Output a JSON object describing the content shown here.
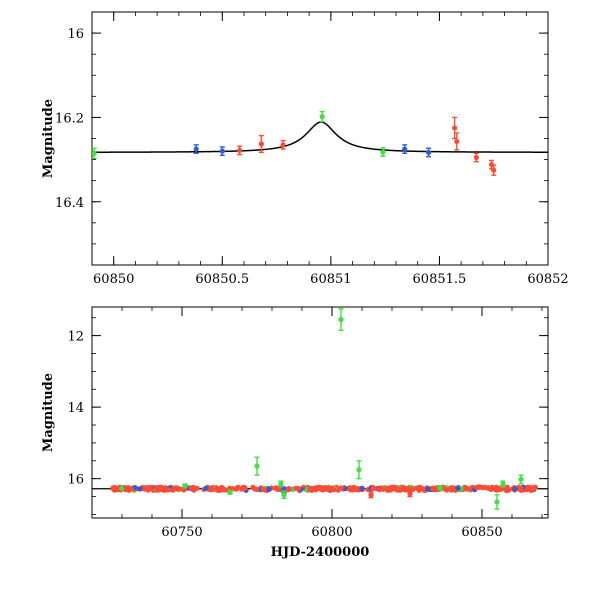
{
  "colors": {
    "red": "#ff4a36",
    "blue": "#2a5fd6",
    "green": "#40e040",
    "model": "#000000"
  },
  "chart_data": [
    {
      "type": "scatter",
      "title": "",
      "xlabel": "",
      "ylabel": "Magnitude",
      "xlim": [
        60849.9,
        60852.0
      ],
      "ylim": [
        16.55,
        15.95
      ],
      "y_inverted": true,
      "xticks": [
        60850,
        60850.5,
        60851,
        60851.5,
        60852
      ],
      "xtick_labels": [
        "60850",
        "60850.5",
        "60851",
        "60851.5",
        "60852"
      ],
      "yticks": [
        16.0,
        16.2,
        16.4
      ],
      "ytick_labels": [
        "16",
        "16.2",
        "16.4"
      ],
      "model_curve": {
        "baseline": 16.283,
        "peak_time": 60850.955,
        "amplitude": 0.072,
        "timescale": 0.085
      },
      "series": [
        {
          "color": "red",
          "points": [
            {
              "x": 60850.58,
              "y": 16.278,
              "err": 0.01
            },
            {
              "x": 60850.68,
              "y": 16.263,
              "err": 0.02
            },
            {
              "x": 60850.78,
              "y": 16.265,
              "err": 0.01
            },
            {
              "x": 60851.57,
              "y": 16.225,
              "err": 0.025
            },
            {
              "x": 60851.58,
              "y": 16.257,
              "err": 0.02
            },
            {
              "x": 60851.67,
              "y": 16.295,
              "err": 0.01
            },
            {
              "x": 60851.74,
              "y": 16.312,
              "err": 0.01
            },
            {
              "x": 60851.75,
              "y": 16.325,
              "err": 0.012
            }
          ]
        },
        {
          "color": "blue",
          "points": [
            {
              "x": 60850.38,
              "y": 16.275,
              "err": 0.01
            },
            {
              "x": 60850.5,
              "y": 16.28,
              "err": 0.01
            },
            {
              "x": 60851.34,
              "y": 16.275,
              "err": 0.01
            },
            {
              "x": 60851.45,
              "y": 16.283,
              "err": 0.01
            }
          ]
        },
        {
          "color": "green",
          "points": [
            {
              "x": 60849.91,
              "y": 16.285,
              "err": 0.012
            },
            {
              "x": 60850.96,
              "y": 16.198,
              "err": 0.012
            },
            {
              "x": 60851.24,
              "y": 16.282,
              "err": 0.01
            }
          ]
        }
      ]
    },
    {
      "type": "scatter",
      "title": "",
      "xlabel": "HJD-2400000",
      "ylabel": "Magnitude",
      "xlim": [
        60720,
        60872
      ],
      "ylim": [
        17.1,
        11.2
      ],
      "y_inverted": true,
      "xticks": [
        60750,
        60800,
        60850
      ],
      "xtick_labels": [
        "60750",
        "60800",
        "60850"
      ],
      "yticks": [
        12,
        14,
        16
      ],
      "ytick_labels": [
        "12",
        "14",
        "16"
      ],
      "baseline_magnitude": 16.283,
      "series": [
        {
          "color": "red",
          "points": [
            {
              "x": 60727,
              "y": 16.26,
              "err": 0.03
            },
            {
              "x": 60733,
              "y": 16.29,
              "err": 0.03
            },
            {
              "x": 60738,
              "y": 16.27,
              "err": 0.03
            },
            {
              "x": 60744,
              "y": 16.3,
              "err": 0.03
            },
            {
              "x": 60749,
              "y": 16.28,
              "err": 0.03
            },
            {
              "x": 60755,
              "y": 16.27,
              "err": 0.03
            },
            {
              "x": 60760,
              "y": 16.3,
              "err": 0.03
            },
            {
              "x": 60766,
              "y": 16.28,
              "err": 0.03
            },
            {
              "x": 60771,
              "y": 16.26,
              "err": 0.03
            },
            {
              "x": 60777,
              "y": 16.29,
              "err": 0.03
            },
            {
              "x": 60782,
              "y": 16.3,
              "err": 0.04
            },
            {
              "x": 60788,
              "y": 16.27,
              "err": 0.03
            },
            {
              "x": 60793,
              "y": 16.28,
              "err": 0.03
            },
            {
              "x": 60798,
              "y": 16.29,
              "err": 0.03
            },
            {
              "x": 60803,
              "y": 16.26,
              "err": 0.03
            },
            {
              "x": 60808,
              "y": 16.3,
              "err": 0.03
            },
            {
              "x": 60813,
              "y": 16.45,
              "err": 0.08
            },
            {
              "x": 60818,
              "y": 16.28,
              "err": 0.03
            },
            {
              "x": 60823,
              "y": 16.29,
              "err": 0.03
            },
            {
              "x": 60826,
              "y": 16.42,
              "err": 0.08
            },
            {
              "x": 60830,
              "y": 16.27,
              "err": 0.03
            },
            {
              "x": 60835,
              "y": 16.3,
              "err": 0.03
            },
            {
              "x": 60840,
              "y": 16.28,
              "err": 0.03
            },
            {
              "x": 60845,
              "y": 16.29,
              "err": 0.03
            },
            {
              "x": 60849,
              "y": 16.23,
              "err": 0.04
            },
            {
              "x": 60853,
              "y": 16.3,
              "err": 0.03
            },
            {
              "x": 60858,
              "y": 16.28,
              "err": 0.03
            },
            {
              "x": 60863,
              "y": 16.27,
              "err": 0.03
            },
            {
              "x": 60867,
              "y": 16.29,
              "err": 0.03
            }
          ]
        },
        {
          "color": "blue",
          "points": [
            {
              "x": 60736,
              "y": 16.29,
              "err": 0.03
            },
            {
              "x": 60758,
              "y": 16.27,
              "err": 0.03
            },
            {
              "x": 60779,
              "y": 16.3,
              "err": 0.03
            },
            {
              "x": 60784,
              "y": 16.42,
              "err": 0.05
            },
            {
              "x": 60810,
              "y": 16.28,
              "err": 0.03
            },
            {
              "x": 60832,
              "y": 16.29,
              "err": 0.03
            },
            {
              "x": 60842,
              "y": 16.27,
              "err": 0.03
            },
            {
              "x": 60861,
              "y": 16.29,
              "err": 0.03
            }
          ]
        },
        {
          "color": "green",
          "points": [
            {
              "x": 60751,
              "y": 16.2,
              "err": 0.05
            },
            {
              "x": 60766,
              "y": 16.38,
              "err": 0.05
            },
            {
              "x": 60775,
              "y": 15.65,
              "err": 0.25
            },
            {
              "x": 60783,
              "y": 16.15,
              "err": 0.08
            },
            {
              "x": 60784,
              "y": 16.45,
              "err": 0.1
            },
            {
              "x": 60803,
              "y": 11.55,
              "err": 0.3
            },
            {
              "x": 60809,
              "y": 15.75,
              "err": 0.25
            },
            {
              "x": 60836,
              "y": 16.25,
              "err": 0.05
            },
            {
              "x": 60855,
              "y": 16.65,
              "err": 0.2
            },
            {
              "x": 60857,
              "y": 16.15,
              "err": 0.08
            },
            {
              "x": 60863,
              "y": 16.02,
              "err": 0.12
            }
          ]
        }
      ]
    }
  ]
}
